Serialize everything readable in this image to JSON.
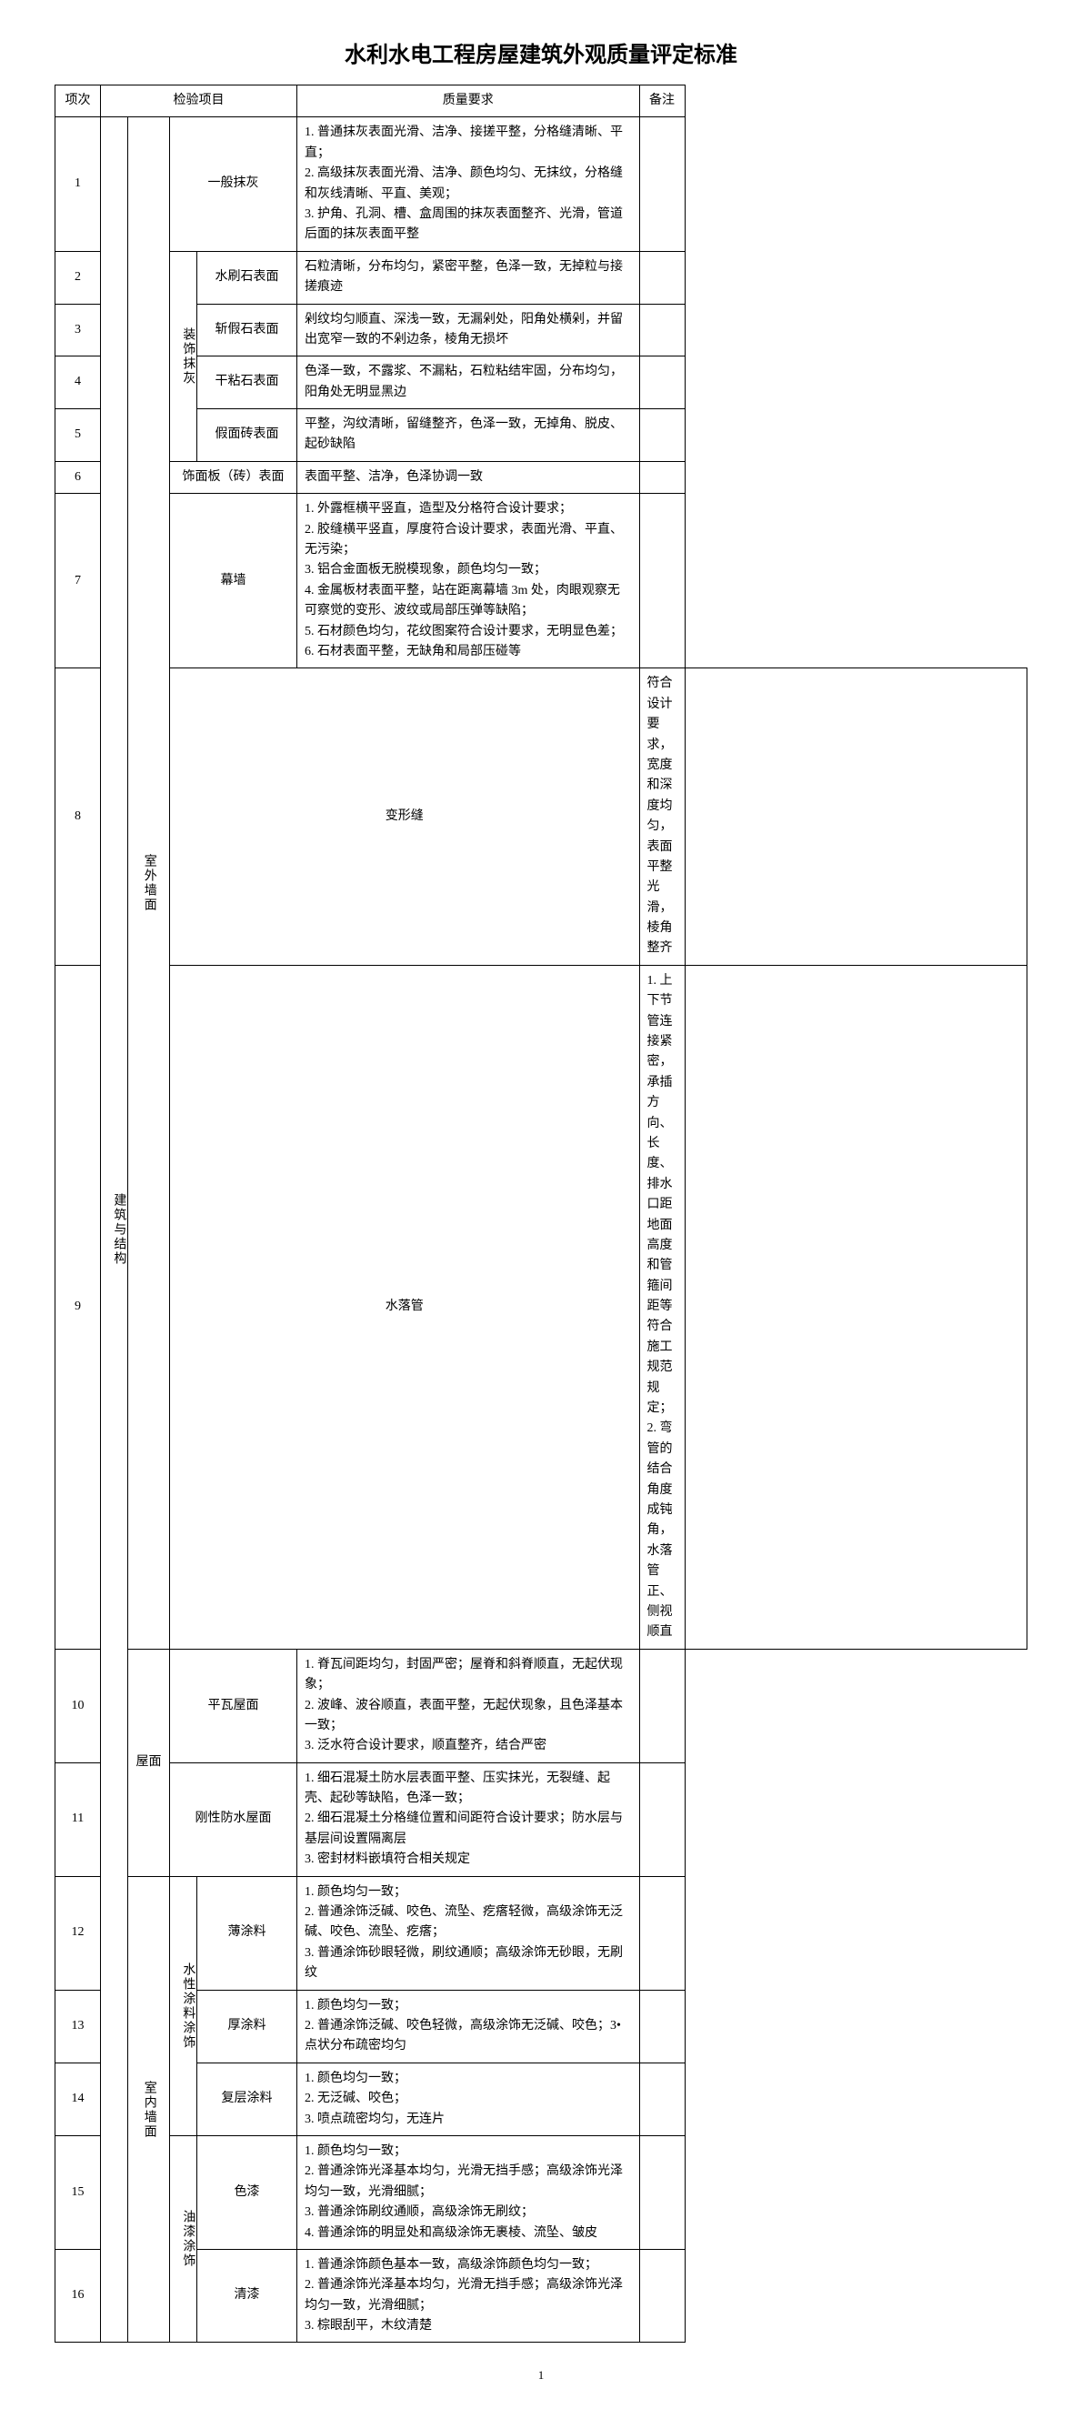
{
  "title": "水利水电工程房屋建筑外观质量评定标准",
  "page_number": "1",
  "headers": {
    "index": "项次",
    "inspect": "检验项目",
    "quality": "质量要求",
    "note": "备注"
  },
  "cat_building": "建筑与结构",
  "cat_outer_wall": "室外墙面",
  "cat_inner_wall": "室内墙面",
  "cat_roof": "屋面",
  "cat_deco_plaster": "装饰抹灰",
  "cat_water_paint": "水性涂料涂饰",
  "cat_oil_paint": "油漆涂饰",
  "rows": [
    {
      "idx": "1",
      "item": "一般抹灰",
      "req": [
        "1. 普通抹灰表面光滑、洁净、接搓平整，分格缝清晰、平直；",
        "2. 高级抹灰表面光滑、洁净、颜色均匀、无抹纹，分格缝和灰线清晰、平直、美观；",
        "3. 护角、孔洞、槽、盒周围的抹灰表面整齐、光滑，管道后面的抹灰表面平整"
      ]
    },
    {
      "idx": "2",
      "item": "水刷石表面",
      "req": [
        "石粒清晰，分布均匀，紧密平整，色泽一致，无掉粒与接搓痕迹"
      ]
    },
    {
      "idx": "3",
      "item": "斩假石表面",
      "req": [
        "剁纹均匀顺直、深浅一致，无漏剁处，阳角处横剁，并留出宽窄一致的不剁边条，棱角无损坏"
      ]
    },
    {
      "idx": "4",
      "item": "干粘石表面",
      "req": [
        "色泽一致，不露浆、不漏粘，石粒粘结牢固，分布均匀，阳角处无明显黑边"
      ]
    },
    {
      "idx": "5",
      "item": "假面砖表面",
      "req": [
        "平整，沟纹清晰，留缝整齐，色泽一致，无掉角、脱皮、起砂缺陷"
      ]
    },
    {
      "idx": "6",
      "item": "饰面板（砖）表面",
      "req": [
        "表面平整、洁净，色泽协调一致"
      ]
    },
    {
      "idx": "7",
      "item": "幕墙",
      "req": [
        "1. 外露框横平竖直，造型及分格符合设计要求；",
        "2. 胶缝横平竖直，厚度符合设计要求，表面光滑、平直、无污染；",
        "3. 铝合金面板无脱模现象，颜色均匀一致；",
        "4. 金属板材表面平整，站在距离幕墙 3m 处，肉眼观察无可察觉的变形、波纹或局部压弹等缺陷；",
        "5. 石材颜色均匀，花纹图案符合设计要求，无明显色差；",
        "6. 石材表面平整，无缺角和局部压碰等"
      ]
    },
    {
      "idx": "8",
      "item": "变形缝",
      "req": [
        "符合设计要求，宽度和深度均匀，表面平整光滑，棱角整齐"
      ]
    },
    {
      "idx": "9",
      "item": "水落管",
      "req": [
        "1. 上下节管连接紧密，承插方向、长度、排水口距地面高度和管箍间距等符合施工规范规定；",
        "2. 弯管的结合角度成钝角，水落管正、侧视顺直"
      ]
    },
    {
      "idx": "10",
      "item": "平瓦屋面",
      "req": [
        "1. 脊瓦间距均匀，封固严密；屋脊和斜脊顺直，无起伏现象；",
        "2. 波峰、波谷顺直，表面平整，无起伏现象，且色泽基本一致；",
        "3. 泛水符合设计要求，顺直整齐，结合严密"
      ]
    },
    {
      "idx": "11",
      "item": "刚性防水屋面",
      "req": [
        "1. 细石混凝土防水层表面平整、压实抹光，无裂缝、起壳、起砂等缺陷，色泽一致；",
        "2. 细石混凝土分格缝位置和间距符合设计要求；防水层与基层间设置隔离层",
        "3. 密封材料嵌填符合相关规定"
      ]
    },
    {
      "idx": "12",
      "item": "薄涂料",
      "req": [
        "1. 颜色均匀一致；",
        "2. 普通涂饰泛碱、咬色、流坠、疙瘩轻微，高级涂饰无泛碱、咬色、流坠、疙瘩；",
        "3. 普通涂饰砂眼轻微，刷纹通顺；高级涂饰无砂眼，无刷纹"
      ]
    },
    {
      "idx": "13",
      "item": "厚涂料",
      "req": [
        "1. 颜色均匀一致；",
        "2. 普通涂饰泛碱、咬色轻微，高级涂饰无泛碱、咬色；3•点状分布疏密均匀"
      ]
    },
    {
      "idx": "14",
      "item": "复层涂料",
      "req": [
        "1. 颜色均匀一致；",
        "2. 无泛碱、咬色；",
        "3. 喷点疏密均匀，无连片"
      ]
    },
    {
      "idx": "15",
      "item": "色漆",
      "req": [
        "1. 颜色均匀一致；",
        "2. 普通涂饰光泽基本均匀，光滑无挡手感；高级涂饰光泽均匀一致，光滑细腻；",
        "3. 普通涂饰刷纹通顺，高级涂饰无刷纹；",
        "4. 普通涂饰的明显处和高级涂饰无裹棱、流坠、皱皮"
      ]
    },
    {
      "idx": "16",
      "item": "清漆",
      "req": [
        "1. 普通涂饰颜色基本一致，高级涂饰颜色均匀一致；",
        "2. 普通涂饰光泽基本均匀，光滑无挡手感；高级涂饰光泽均匀一致，光滑细腻；",
        "3. 棕眼刮平，木纹清楚"
      ]
    }
  ]
}
